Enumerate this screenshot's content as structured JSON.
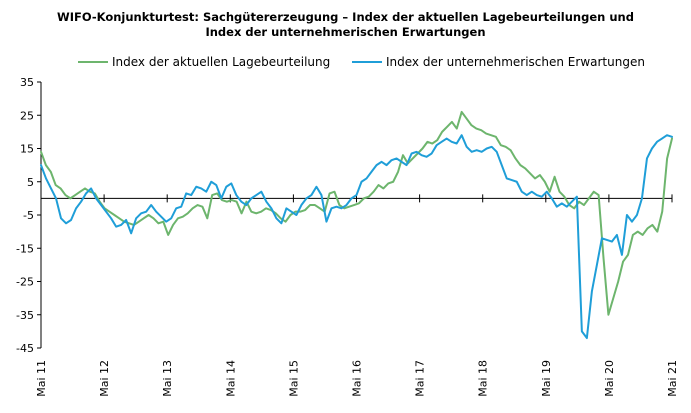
{
  "title_line1": "WIFO-Konjunkturtest: Sachgütererzeugung – Index der aktuellen Lagebeurteilungen und",
  "title_line2": "Index der unternehmerischen Erwartungen",
  "chart_data": {
    "type": "line",
    "title": "WIFO-Konjunkturtest: Sachgütererzeugung – Index der aktuellen Lagebeurteilungen und Index der unternehmerischen Erwartungen",
    "xlabel": "",
    "ylabel": "",
    "ylim": [
      -45,
      35
    ],
    "yticks": [
      35,
      25,
      15,
      5,
      -5,
      -15,
      -25,
      -35,
      -45
    ],
    "x_tick_labels": [
      "Mai 11",
      "Mai 12",
      "Mai 13",
      "Mai 14",
      "Mai 15",
      "Mai 16",
      "Mai 17",
      "Mai 18",
      "Mai 19",
      "Mai 20",
      "Mai 21"
    ],
    "x_start": "2011-05",
    "x_end": "2021-05",
    "legend_position": "top",
    "grid": false,
    "series": [
      {
        "name": "Index der aktuellen Lagebeurteilung",
        "color": "#6db56d",
        "values": [
          14.0,
          10.0,
          8.0,
          4.0,
          3.0,
          1.0,
          0.0,
          1.0,
          2.0,
          3.0,
          2.0,
          1.5,
          -1.0,
          -3.0,
          -4.0,
          -5.0,
          -6.0,
          -7.0,
          -7.5,
          -8.0,
          -7.0,
          -6.0,
          -5.0,
          -6.0,
          -7.5,
          -7.0,
          -11.0,
          -8.0,
          -6.0,
          -5.5,
          -4.5,
          -3.0,
          -2.0,
          -2.5,
          -6.0,
          1.0,
          1.5,
          -0.5,
          -1.0,
          -0.5,
          -1.0,
          -4.5,
          -1.0,
          -4.0,
          -4.5,
          -4.0,
          -3.0,
          -3.5,
          -4.5,
          -6.0,
          -7.0,
          -5.0,
          -4.0,
          -4.0,
          -3.5,
          -2.0,
          -2.0,
          -3.0,
          -4.0,
          1.5,
          2.0,
          -2.0,
          -3.0,
          -2.5,
          -2.0,
          -1.5,
          0.0,
          0.5,
          2.0,
          4.0,
          3.0,
          4.5,
          5.0,
          8.0,
          13.0,
          10.5,
          12.0,
          13.5,
          15.0,
          17.0,
          16.5,
          17.5,
          20.0,
          21.5,
          23.0,
          21.0,
          26.0,
          24.0,
          22.0,
          21.0,
          20.5,
          19.5,
          19.0,
          18.5,
          16.0,
          15.5,
          14.5,
          12.0,
          10.0,
          9.0,
          7.5,
          6.0,
          7.0,
          5.0,
          2.0,
          6.5,
          2.0,
          0.5,
          -2.0,
          -3.0,
          -1.0,
          -2.0,
          0.0,
          2.0,
          1.0,
          -18.0,
          -35.0,
          -30.0,
          -25.0,
          -19.0,
          -17.0,
          -11.0,
          -10.0,
          -11.0,
          -9.0,
          -8.0,
          -10.0,
          -4.0,
          12.0,
          18.0
        ]
      },
      {
        "name": "Index der unternehmerischen Erwartungen",
        "color": "#1f9ed8",
        "values": [
          10.0,
          6.0,
          3.0,
          0.0,
          -6.0,
          -7.5,
          -6.5,
          -3.0,
          -1.0,
          1.5,
          3.0,
          0.0,
          -2.0,
          -4.0,
          -6.0,
          -8.5,
          -8.0,
          -6.5,
          -10.5,
          -6.0,
          -4.5,
          -4.0,
          -2.0,
          -4.0,
          -5.5,
          -7.0,
          -6.0,
          -3.0,
          -2.5,
          1.5,
          1.0,
          3.5,
          3.0,
          2.0,
          5.0,
          4.0,
          0.0,
          3.5,
          4.5,
          1.0,
          -1.0,
          -2.0,
          0.0,
          1.0,
          2.0,
          -1.0,
          -3.0,
          -6.0,
          -7.5,
          -3.0,
          -4.0,
          -5.0,
          -2.0,
          0.0,
          1.0,
          3.5,
          1.0,
          -7.0,
          -3.0,
          -2.5,
          -3.0,
          -2.0,
          0.0,
          1.0,
          5.0,
          6.0,
          8.0,
          10.0,
          11.0,
          10.0,
          11.5,
          12.0,
          11.0,
          10.0,
          13.5,
          14.0,
          13.0,
          12.5,
          13.5,
          16.0,
          17.0,
          18.0,
          17.0,
          16.5,
          19.0,
          15.5,
          14.0,
          14.5,
          14.0,
          15.0,
          15.5,
          14.0,
          10.0,
          6.0,
          5.5,
          5.0,
          2.0,
          1.0,
          2.0,
          1.0,
          0.5,
          2.0,
          0.0,
          -2.5,
          -1.5,
          -2.5,
          -1.0,
          0.5,
          -40.0,
          -42.0,
          -28.0,
          -20.0,
          -12.0,
          -12.5,
          -13.0,
          -11.0,
          -17.0,
          -5.0,
          -7.0,
          -5.0,
          0.0,
          12.0,
          15.0,
          17.0,
          18.0,
          19.0,
          18.5
        ]
      }
    ]
  }
}
